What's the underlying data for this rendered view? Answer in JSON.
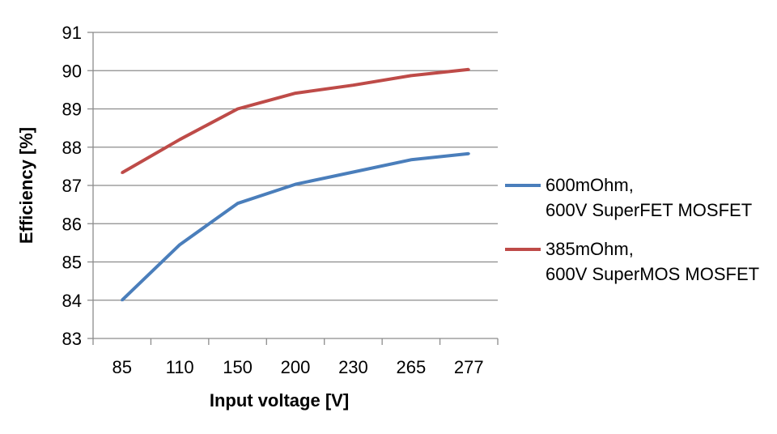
{
  "chart_data": {
    "type": "line",
    "categories": [
      "85",
      "110",
      "150",
      "200",
      "230",
      "265",
      "277"
    ],
    "series": [
      {
        "name_lines": [
          "600mOhm,",
          "600V SuperFET MOSFET"
        ],
        "color": "#4a7ebb",
        "values": [
          84.0,
          85.45,
          86.53,
          87.03,
          87.35,
          87.67,
          87.83
        ]
      },
      {
        "name_lines": [
          "385mOhm,",
          "600V SuperMOS MOSFET"
        ],
        "color": "#be4b48",
        "values": [
          87.33,
          88.2,
          89.0,
          89.41,
          89.62,
          89.87,
          90.03
        ]
      }
    ],
    "xlabel": "Input voltage [V]",
    "ylabel": "Efficiency [%]",
    "ylim": [
      83,
      91
    ],
    "yticks": [
      "83",
      "84",
      "85",
      "86",
      "87",
      "88",
      "89",
      "90",
      "91"
    ],
    "grid": "horizontal",
    "legend_position": "right"
  }
}
